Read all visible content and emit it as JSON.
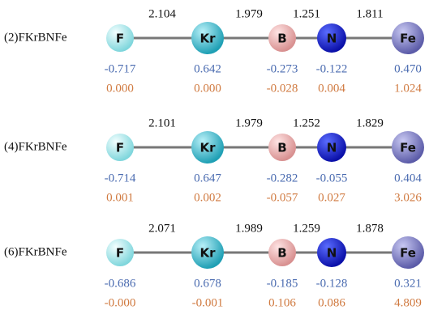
{
  "molecules": [
    {
      "label": "(2)FKrBNFe",
      "bonds": [
        "2.104",
        "1.979",
        "1.251",
        "1.811"
      ],
      "atoms": [
        {
          "symbol": "F",
          "charge": "-0.717",
          "spin": "0.000"
        },
        {
          "symbol": "Kr",
          "charge": "0.642",
          "spin": "0.000"
        },
        {
          "symbol": "B",
          "charge": "-0.273",
          "spin": "-0.028"
        },
        {
          "symbol": "N",
          "charge": "-0.122",
          "spin": "0.004"
        },
        {
          "symbol": "Fe",
          "charge": "0.470",
          "spin": "1.024"
        }
      ]
    },
    {
      "label": "(4)FKrBNFe",
      "bonds": [
        "2.101",
        "1.979",
        "1.252",
        "1.829"
      ],
      "atoms": [
        {
          "symbol": "F",
          "charge": "-0.714",
          "spin": "0.001"
        },
        {
          "symbol": "Kr",
          "charge": "0.647",
          "spin": "0.002"
        },
        {
          "symbol": "B",
          "charge": "-0.282",
          "spin": "-0.057"
        },
        {
          "symbol": "N",
          "charge": "-0.055",
          "spin": "0.027"
        },
        {
          "symbol": "Fe",
          "charge": "0.404",
          "spin": "3.026"
        }
      ]
    },
    {
      "label": "(6)FKrBNFe",
      "bonds": [
        "2.071",
        "1.989",
        "1.259",
        "1.878"
      ],
      "atoms": [
        {
          "symbol": "F",
          "charge": "-0.686",
          "spin": "-0.000"
        },
        {
          "symbol": "Kr",
          "charge": "0.678",
          "spin": "-0.001"
        },
        {
          "symbol": "B",
          "charge": "-0.185",
          "spin": "0.106"
        },
        {
          "symbol": "N",
          "charge": "-0.128",
          "spin": "0.086"
        },
        {
          "symbol": "Fe",
          "charge": "0.321",
          "spin": "4.809"
        }
      ]
    }
  ]
}
